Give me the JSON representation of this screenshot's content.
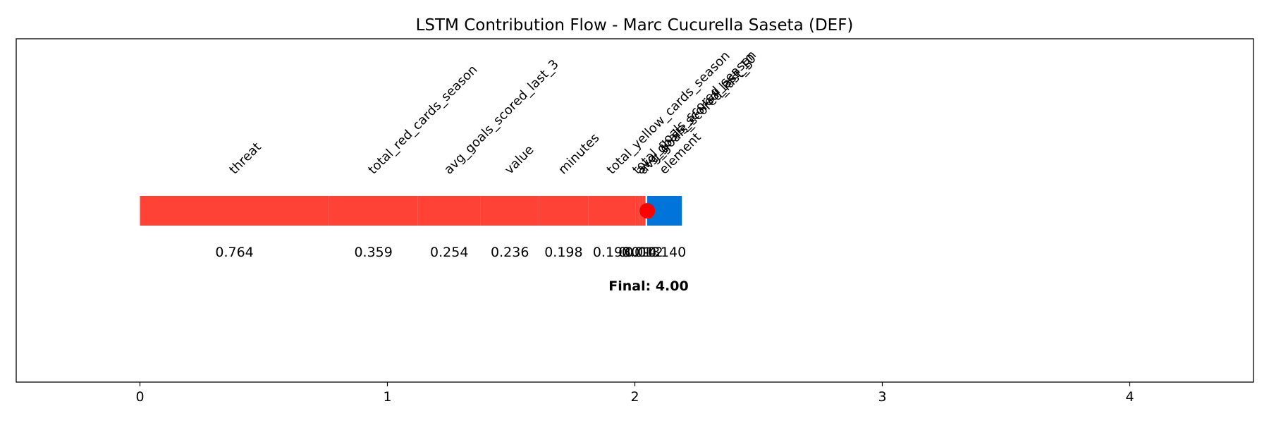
{
  "chart_data": {
    "type": "bar",
    "title": "LSTM Contribution Flow - Marc Cucurella Saseta (DEF)",
    "xlabel": "",
    "ylabel": "",
    "xlim": [
      -0.5,
      4.5
    ],
    "xticks": [
      "0",
      "1",
      "2",
      "3",
      "4"
    ],
    "grid": false,
    "legend": "none",
    "colors": {
      "positive": "#ff4136",
      "negative": "#0074d9",
      "marker": "#ff0000"
    },
    "contributions": [
      {
        "feature": "threat",
        "value": 0.764,
        "label": "0.764"
      },
      {
        "feature": "total_red_cards_season",
        "value": 0.359,
        "label": "0.359"
      },
      {
        "feature": "avg_goals_scored_last_3",
        "value": 0.254,
        "label": "0.254"
      },
      {
        "feature": "value",
        "value": 0.236,
        "label": "0.236"
      },
      {
        "feature": "minutes",
        "value": 0.198,
        "label": "0.198"
      },
      {
        "feature": "total_yellow_cards_season",
        "value": 0.193,
        "label": "0.193"
      },
      {
        "feature": "total_goals_scored_season",
        "value": 0.014,
        "label": "0.014"
      },
      {
        "feature": "avg_goals_scored_last_10",
        "value": 0.013,
        "label": "0.013"
      },
      {
        "feature": "avg_goals_scored_last_5",
        "value": 0.012,
        "label": "0.012"
      },
      {
        "feature": "element",
        "value": -0.14,
        "label": "-0.140"
      }
    ],
    "blue_segment": [
      2.05,
      2.19
    ],
    "marker_x": 2.05,
    "final_label": "Final: 4.00"
  }
}
